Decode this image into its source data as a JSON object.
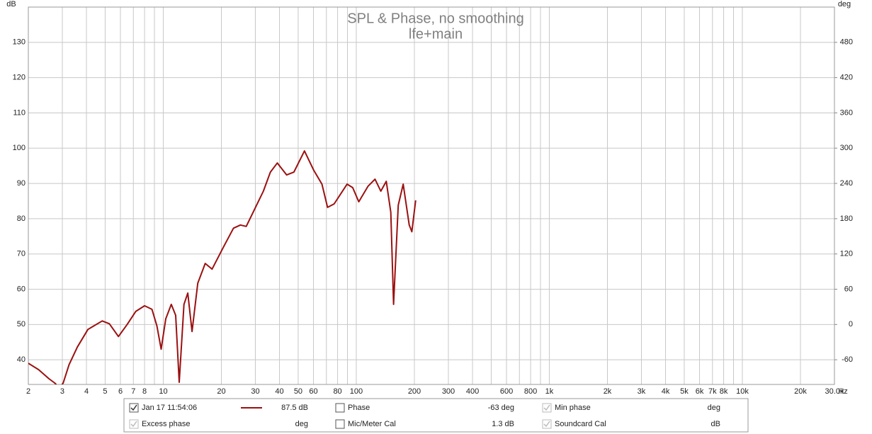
{
  "chart_data": {
    "type": "line",
    "title": "SPL & Phase, no smoothing",
    "subtitle": "lfe+main",
    "y_label": "dB",
    "y2_label": "deg",
    "x_unit": "Hz",
    "log_x": true,
    "grid": true,
    "xlim": [
      2,
      30000
    ],
    "ylim": [
      33,
      140
    ],
    "y2lim": [
      -102,
      540
    ],
    "xticks": [
      2,
      3,
      4,
      5,
      6,
      7,
      8,
      10,
      20,
      30,
      40,
      50,
      60,
      80,
      100,
      200,
      300,
      400,
      600,
      800,
      {
        "value": 1000,
        "label": "1k"
      },
      {
        "value": 2000,
        "label": "2k"
      },
      {
        "value": 3000,
        "label": "3k"
      },
      {
        "value": 4000,
        "label": "4k"
      },
      {
        "value": 5000,
        "label": "5k"
      },
      {
        "value": 6000,
        "label": "6k"
      },
      {
        "value": 7000,
        "label": "7k"
      },
      {
        "value": 8000,
        "label": "8k"
      },
      {
        "value": 10000,
        "label": "10k"
      },
      {
        "value": 20000,
        "label": "20k"
      },
      {
        "value": 30000,
        "label": "30.0k"
      }
    ],
    "xminor_ticks": [
      9,
      70,
      90,
      500,
      700,
      900,
      9000
    ],
    "yticks": [
      40,
      50,
      60,
      70,
      80,
      90,
      100,
      110,
      120,
      130
    ],
    "y2ticks": [
      -60,
      0,
      60,
      120,
      180,
      240,
      300,
      360,
      420,
      480
    ],
    "x": [
      2,
      2.26,
      2.56,
      2.74,
      2.9,
      3.03,
      3.25,
      3.59,
      4.07,
      4.83,
      5.26,
      5.86,
      6.5,
      7.2,
      8.0,
      8.74,
      9.27,
      9.75,
      10.3,
      11.0,
      11.6,
      12.1,
      12.8,
      13.4,
      14.1,
      15.1,
      16.5,
      17.9,
      20.4,
      23.1,
      25.1,
      26.9,
      29.8,
      33,
      35.9,
      39,
      43.6,
      47.5,
      53.9,
      60.1,
      66.4,
      71,
      76.8,
      89.6,
      95.8,
      103,
      115,
      125,
      134,
      143,
      151,
      156,
      165,
      175,
      188,
      194,
      203
    ],
    "series": [
      {
        "name": "Jan 17 11:54:06",
        "color": "#9b1010",
        "values": [
          39,
          37.2,
          34.6,
          33.4,
          32,
          33.4,
          38.6,
          43.6,
          48.6,
          51,
          50.2,
          46.6,
          50,
          53.7,
          55.3,
          54.3,
          49.6,
          43,
          51.6,
          55.7,
          52.6,
          33.6,
          55.7,
          58.9,
          48,
          61.7,
          67.3,
          65.7,
          71.7,
          77.3,
          78.2,
          77.8,
          82.8,
          87.8,
          93.2,
          95.8,
          92.4,
          93.2,
          99.2,
          93.8,
          89.8,
          83.2,
          84.2,
          89.8,
          88.8,
          84.8,
          89.2,
          91.2,
          87.8,
          90.6,
          81.8,
          55.7,
          83.8,
          89.8,
          78.2,
          76.3,
          85.2
        ]
      }
    ],
    "legend_panel": [
      [
        {
          "label": "Jan 17 11:54:06",
          "checked": true,
          "enabled": true,
          "value": "87.5 dB",
          "red": true
        },
        {
          "label": "Phase",
          "checked": false,
          "enabled": true,
          "value": "-63 deg",
          "red": true
        },
        {
          "label": "Min phase",
          "checked": true,
          "enabled": false,
          "value": "deg",
          "red": false
        }
      ],
      [
        {
          "label": "Excess phase",
          "checked": true,
          "enabled": false,
          "value": "deg",
          "red": false
        },
        {
          "label": "Mic/Meter Cal",
          "checked": false,
          "enabled": true,
          "value": "1.3 dB",
          "red": false
        },
        {
          "label": "Soundcard Cal",
          "checked": true,
          "enabled": false,
          "value": "dB",
          "red": false
        }
      ]
    ]
  }
}
